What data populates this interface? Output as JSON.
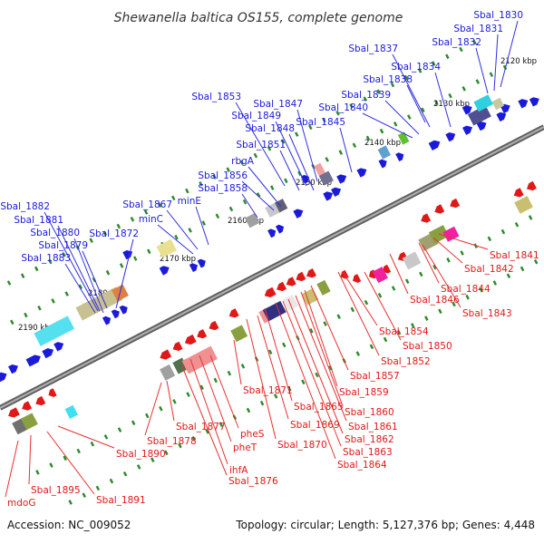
{
  "title": "Shewanella baltica OS155, complete genome",
  "accession": "Accession: NC_009052",
  "topology": "Topology: circular; Length: 5,127,376 bp; Genes: 4,448",
  "colors": {
    "forward": "#1a1adb",
    "reverse": "#e01818",
    "backbone": "#808080",
    "tick": "#2e8b2e"
  },
  "kbp_ticks": [
    "2120 kbp",
    "2130 kbp",
    "2140 kbp",
    "2150 kbp",
    "2160 kbp",
    "2170 kbp",
    "2180 kbp",
    "2190 kbp"
  ],
  "forward_labels": [
    "Sbal_1830",
    "Sbal_1831",
    "Sbal_1832",
    "Sbal_1837",
    "Sbal_1834",
    "Sbal_1838",
    "Sbal_1839",
    "Sbal_1840",
    "Sbal_1853",
    "Sbal_1847",
    "Sbal_1849",
    "Sbal_1848",
    "Sbal_1845",
    "Sbal_1851",
    "rbgA",
    "Sbal_1856",
    "Sbal_1858",
    "minE",
    "Sbal_1867",
    "minC",
    "Sbal_1872",
    "Sbal_1882",
    "Sbal_1881",
    "Sbal_1880",
    "Sbal_1879",
    "Sbal_1883"
  ],
  "reverse_labels": [
    "Sbal_1841",
    "Sbal_1842",
    "Sbal_1844",
    "Sbal_1846",
    "Sbal_1843",
    "Sbal_1854",
    "Sbal_1850",
    "Sbal_1852",
    "Sbal_1857",
    "Sbal_1859",
    "Sbal_1860",
    "Sbal_1861",
    "Sbal_1862",
    "Sbal_1863",
    "Sbal_1864",
    "Sbal_1865",
    "Sbal_1869",
    "Sbal_1870",
    "Sbal_1871",
    "pheS",
    "pheT",
    "ihfA",
    "Sbal_1876",
    "Sbal_1877",
    "Sbal_1878",
    "Sbal_1890",
    "Sbal_1891",
    "Sbal_1895",
    "mdoG"
  ]
}
